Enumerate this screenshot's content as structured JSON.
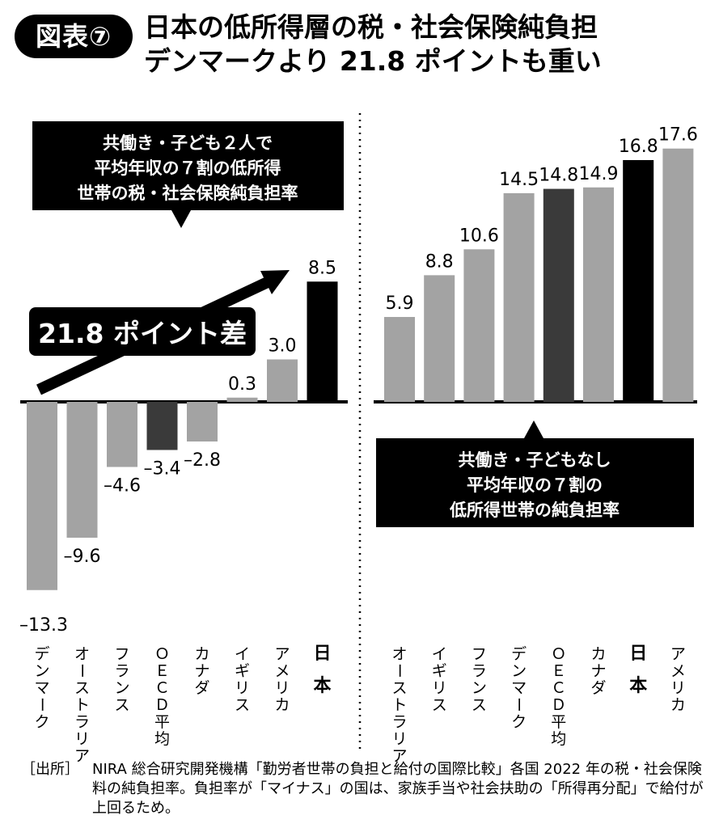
{
  "header": {
    "figure_label": "図表⑦",
    "title_line1": "日本の低所得層の税・社会保険純負担",
    "title_line2": "デンマークより 21.8 ポイントも重い"
  },
  "colors": {
    "bar_gray": "#a3a3a3",
    "bar_oecd": "#3a3a3a",
    "bar_japan": "#000000",
    "callout_bg": "#000000",
    "callout_text": "#ffffff"
  },
  "chart_data": [
    {
      "type": "bar",
      "callout_lines": [
        "共働き・子ども２人で",
        "平均年収の７割の低所得",
        "世帯の税・社会保険純負担率"
      ],
      "annotation": "21.8 ポイント差",
      "categories": [
        "デンマーク",
        "オーストラリア",
        "フランス",
        "ＯＥＣＤ平均",
        "カナダ",
        "イギリス",
        "アメリカ",
        "日本"
      ],
      "values": [
        -13.3,
        -9.6,
        -4.6,
        -3.4,
        -2.8,
        0.3,
        3.0,
        8.5
      ],
      "value_labels": [
        "–13.3",
        "–9.6",
        "–4.6",
        "–3.4",
        "–2.8",
        "0.3",
        "3.0",
        "8.5"
      ],
      "highlight": [
        "gray",
        "gray",
        "gray",
        "oecd",
        "gray",
        "gray",
        "gray",
        "japan"
      ]
    },
    {
      "type": "bar",
      "callout_lines": [
        "共働き・子どもなし",
        "平均年収の７割の",
        "低所得世帯の純負担率"
      ],
      "categories": [
        "オーストラリア",
        "イギリス",
        "フランス",
        "デンマーク",
        "ＯＥＣＤ平均",
        "カナダ",
        "日本",
        "アメリカ"
      ],
      "values": [
        5.9,
        8.8,
        10.6,
        14.5,
        14.8,
        14.9,
        16.8,
        17.6
      ],
      "value_labels": [
        "5.9",
        "8.8",
        "10.6",
        "14.5",
        "14.8",
        "14.9",
        "16.8",
        "17.6"
      ],
      "highlight": [
        "gray",
        "gray",
        "gray",
        "gray",
        "oecd",
        "gray",
        "japan",
        "gray"
      ]
    }
  ],
  "footer": {
    "source_label": "［出所］",
    "source_text": "NIRA 総合研究開発機構「勤労者世帯の負担と給付の国際比較」各国 2022 年の税・社会保険料の純負担率。負担率が「マイナス」の国は、家族手当や社会扶助の「所得再分配」で給付が上回るため。"
  }
}
